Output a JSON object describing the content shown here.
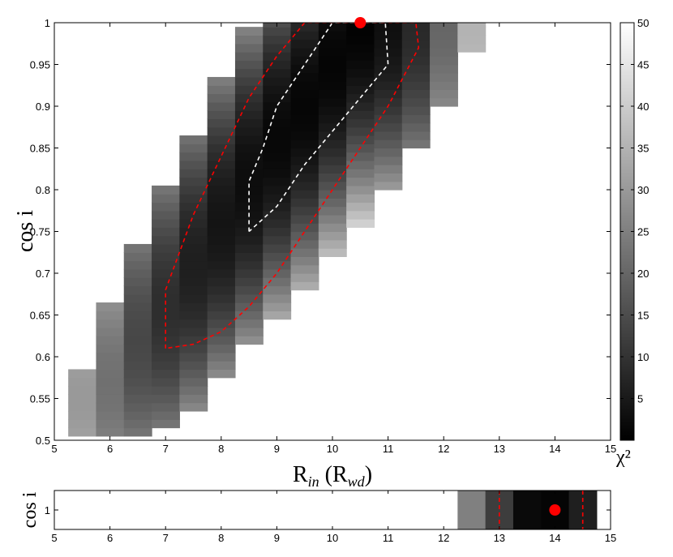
{
  "chart_data": [
    {
      "type": "heatmap",
      "xlabel": "R_in (R_wd)",
      "ylabel": "cos i",
      "xlim": [
        5,
        15
      ],
      "ylim": [
        0.5,
        1
      ],
      "xticks": [
        "5",
        "6",
        "7",
        "8",
        "9",
        "10",
        "11",
        "12",
        "13",
        "14",
        "15"
      ],
      "yticks": [
        "0.5",
        "0.55",
        "0.6",
        "0.65",
        "0.7",
        "0.75",
        "0.8",
        "0.85",
        "0.9",
        "0.95",
        "1"
      ],
      "colorbar": {
        "label": "χ²",
        "range": [
          0,
          50
        ],
        "ticks": [
          "5",
          "10",
          "15",
          "20",
          "25",
          "30",
          "35",
          "40",
          "45",
          "50"
        ],
        "colormap": "grayscale (black = low, white = high)"
      },
      "columns": [
        {
          "x": 5.5,
          "ymin": 0.505,
          "ymax": 0.585,
          "chi2_min": 30,
          "at_y": 0.55
        },
        {
          "x": 6.0,
          "ymin": 0.505,
          "ymax": 0.665,
          "chi2_min": 22,
          "at_y": 0.57
        },
        {
          "x": 6.5,
          "ymin": 0.505,
          "ymax": 0.735,
          "chi2_min": 14,
          "at_y": 0.62
        },
        {
          "x": 7.0,
          "ymin": 0.515,
          "ymax": 0.805,
          "chi2_min": 9,
          "at_y": 0.66
        },
        {
          "x": 7.5,
          "ymin": 0.535,
          "ymax": 0.865,
          "chi2_min": 6,
          "at_y": 0.71
        },
        {
          "x": 8.0,
          "ymin": 0.575,
          "ymax": 0.935,
          "chi2_min": 4,
          "at_y": 0.76
        },
        {
          "x": 8.5,
          "ymin": 0.615,
          "ymax": 0.99,
          "chi2_min": 2.5,
          "at_y": 0.81
        },
        {
          "x": 9.0,
          "ymin": 0.645,
          "ymax": 1.0,
          "chi2_min": 1.5,
          "at_y": 0.86
        },
        {
          "x": 9.5,
          "ymin": 0.68,
          "ymax": 1.0,
          "chi2_min": 1.2,
          "at_y": 0.9
        },
        {
          "x": 10.0,
          "ymin": 0.72,
          "ymax": 1.0,
          "chi2_min": 1.0,
          "at_y": 0.95
        },
        {
          "x": 10.5,
          "ymin": 0.755,
          "ymax": 1.0,
          "chi2_min": 0.5,
          "at_y": 1.0
        },
        {
          "x": 11.0,
          "ymin": 0.8,
          "ymax": 1.0,
          "chi2_min": 3,
          "at_y": 1.0
        },
        {
          "x": 11.5,
          "ymin": 0.85,
          "ymax": 1.0,
          "chi2_min": 8,
          "at_y": 1.0
        },
        {
          "x": 12.0,
          "ymin": 0.9,
          "ymax": 1.0,
          "chi2_min": 20,
          "at_y": 1.0
        },
        {
          "x": 12.5,
          "ymin": 0.965,
          "ymax": 1.0,
          "chi2_min": 35,
          "at_y": 1.0
        }
      ],
      "contours": [
        {
          "color": "#ffffff",
          "style": "dashed",
          "points": [
            [
              8.5,
              0.75
            ],
            [
              8.5,
              0.81
            ],
            [
              8.75,
              0.85
            ],
            [
              9.0,
              0.9
            ],
            [
              9.5,
              0.95
            ],
            [
              10.0,
              1.0
            ],
            [
              10.2,
              1.0
            ],
            [
              10.95,
              1.0
            ],
            [
              11.0,
              0.95
            ],
            [
              10.5,
              0.91
            ],
            [
              10.0,
              0.87
            ],
            [
              9.5,
              0.83
            ],
            [
              9.0,
              0.78
            ],
            [
              8.5,
              0.75
            ]
          ]
        },
        {
          "color": "#ff0000",
          "style": "dashed",
          "points": [
            [
              7.0,
              0.61
            ],
            [
              7.0,
              0.68
            ],
            [
              7.5,
              0.77
            ],
            [
              8.0,
              0.84
            ],
            [
              8.5,
              0.91
            ],
            [
              9.0,
              0.96
            ],
            [
              9.5,
              1.0
            ],
            [
              10.5,
              1.0
            ],
            [
              11.5,
              1.0
            ],
            [
              11.55,
              0.97
            ],
            [
              11.0,
              0.9
            ],
            [
              10.5,
              0.85
            ],
            [
              10.0,
              0.8
            ],
            [
              9.5,
              0.75
            ],
            [
              9.0,
              0.7
            ],
            [
              8.5,
              0.66
            ],
            [
              8.0,
              0.63
            ],
            [
              7.5,
              0.615
            ],
            [
              7.0,
              0.61
            ]
          ]
        }
      ],
      "best_fit": {
        "x": 10.5,
        "y": 1.0,
        "color": "#ff0000"
      }
    },
    {
      "type": "heatmap",
      "ylabel": "cos i",
      "xlim": [
        5,
        15
      ],
      "xticks": [
        "5",
        "6",
        "7",
        "8",
        "9",
        "10",
        "11",
        "12",
        "13",
        "14",
        "15"
      ],
      "yticks": [
        "1"
      ],
      "cells": [
        {
          "x0": 12.25,
          "x1": 12.75,
          "chi2": 25
        },
        {
          "x0": 12.75,
          "x1": 13.25,
          "chi2": 12
        },
        {
          "x0": 13.25,
          "x1": 13.75,
          "chi2": 2
        },
        {
          "x0": 13.75,
          "x1": 14.25,
          "chi2": 1
        },
        {
          "x0": 14.25,
          "x1": 14.75,
          "chi2": 6
        }
      ],
      "contours": [
        {
          "color": "#ff0000",
          "style": "dashed",
          "x": 13.0
        },
        {
          "color": "#ff0000",
          "style": "dashed",
          "x": 14.5
        }
      ],
      "best_fit": {
        "x": 14.0,
        "y": 1,
        "color": "#ff0000"
      }
    }
  ]
}
